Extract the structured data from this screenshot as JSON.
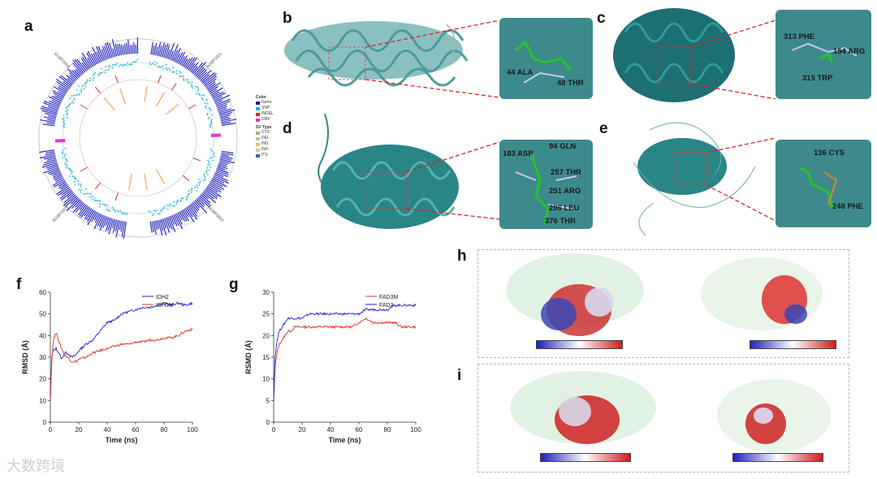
{
  "panels": {
    "a": "a",
    "b": "b",
    "c": "c",
    "d": "d",
    "e": "e",
    "f": "f",
    "g": "g",
    "h": "h",
    "i": "i"
  },
  "circos": {
    "chromosomes": [
      "NGBF0001",
      "NGBF0002",
      "NGBF0003",
      "NGBF0004"
    ],
    "legend_color_title": "Color",
    "legend_colors": [
      {
        "label": "Gene",
        "color": "#1a1ab8"
      },
      {
        "label": "SNP",
        "color": "#19b6d8"
      },
      {
        "label": "INDEL",
        "color": "#cf2b2b"
      },
      {
        "label": "CNV",
        "color": "#e036d4"
      }
    ],
    "legend_sv_title": "SV Type",
    "legend_sv": [
      {
        "label": "CTX",
        "color": "#8fc64e"
      },
      {
        "label": "DEL",
        "color": "#c2c2c2"
      },
      {
        "label": "INS",
        "color": "#f2b27a"
      },
      {
        "label": "INV",
        "color": "#d7c79a"
      },
      {
        "label": "ITX",
        "color": "#3f5fa8"
      }
    ]
  },
  "structures": {
    "b": [
      "44 ALA",
      "48 THR"
    ],
    "c": [
      "313 PHE",
      "154 ARG",
      "315 TRP"
    ],
    "d": [
      "94 GLN",
      "183 ASP",
      "257 THR",
      "251 ARG",
      "296 LEU",
      "376 THR"
    ],
    "e": [
      "136 CYS",
      "248 PHE"
    ]
  },
  "chart_data": [
    {
      "type": "line",
      "panel": "f",
      "xlabel": "Time (ns)",
      "ylabel": "RMSD (Å)",
      "xlim": [
        0,
        100
      ],
      "ylim": [
        0,
        60
      ],
      "xticks": [
        0,
        20,
        40,
        60,
        80,
        100
      ],
      "yticks": [
        0,
        10,
        20,
        30,
        40,
        50,
        60
      ],
      "legend_position": "top-right",
      "series": [
        {
          "name": "IDH2",
          "color": "#2222cc",
          "x": [
            0,
            1,
            2,
            4,
            6,
            8,
            10,
            12,
            15,
            18,
            20,
            25,
            30,
            35,
            40,
            45,
            50,
            55,
            60,
            65,
            70,
            75,
            80,
            85,
            90,
            95,
            100
          ],
          "y": [
            10,
            30,
            33,
            34,
            32,
            29,
            32,
            32,
            30,
            31,
            33,
            36,
            38,
            42,
            46,
            47,
            50,
            51,
            52,
            53,
            53,
            54,
            55,
            54,
            55,
            54,
            55
          ]
        },
        {
          "name": "IDH2M",
          "color": "#dd3333",
          "x": [
            0,
            1,
            2,
            3,
            4,
            5,
            6,
            8,
            10,
            12,
            15,
            18,
            20,
            25,
            30,
            35,
            40,
            45,
            50,
            55,
            60,
            65,
            70,
            75,
            80,
            85,
            90,
            95,
            100
          ],
          "y": [
            10,
            28,
            37,
            40,
            41,
            40,
            37,
            34,
            31,
            30,
            28,
            28,
            29,
            30,
            32,
            33,
            34,
            35,
            36,
            36,
            37,
            37,
            38,
            38,
            39,
            39,
            40,
            42,
            43
          ]
        }
      ]
    },
    {
      "type": "line",
      "panel": "g",
      "xlabel": "Time (ns)",
      "ylabel": "RSMD (Å)",
      "xlim": [
        0,
        100
      ],
      "ylim": [
        0,
        30
      ],
      "xticks": [
        0,
        20,
        40,
        60,
        80,
        100
      ],
      "yticks": [
        0,
        5,
        10,
        15,
        20,
        25,
        30
      ],
      "legend_position": "top-right",
      "series": [
        {
          "name": "FAD3M",
          "color": "#dd3333",
          "x": [
            0,
            1,
            2,
            3,
            4,
            6,
            8,
            10,
            12,
            15,
            20,
            25,
            30,
            35,
            40,
            45,
            50,
            55,
            60,
            65,
            70,
            75,
            80,
            85,
            90,
            95,
            100
          ],
          "y": [
            5,
            13,
            15,
            17,
            18,
            19,
            20,
            21,
            21,
            22,
            22,
            22,
            22,
            22,
            22,
            22,
            22,
            22,
            23,
            24,
            23,
            23,
            23,
            23,
            22,
            22,
            22
          ]
        },
        {
          "name": "FAD3",
          "color": "#2222cc",
          "x": [
            0,
            1,
            2,
            3,
            4,
            6,
            8,
            10,
            12,
            15,
            20,
            25,
            30,
            35,
            40,
            45,
            50,
            55,
            60,
            65,
            70,
            75,
            80,
            85,
            90,
            95,
            100
          ],
          "y": [
            5,
            15,
            18,
            20,
            21,
            22,
            23,
            24,
            24,
            24,
            24,
            25,
            25,
            25,
            25,
            25,
            25,
            25,
            25,
            26,
            26,
            26,
            26,
            27,
            27,
            27,
            27
          ]
        }
      ]
    }
  ],
  "watermark": "大数跨境"
}
